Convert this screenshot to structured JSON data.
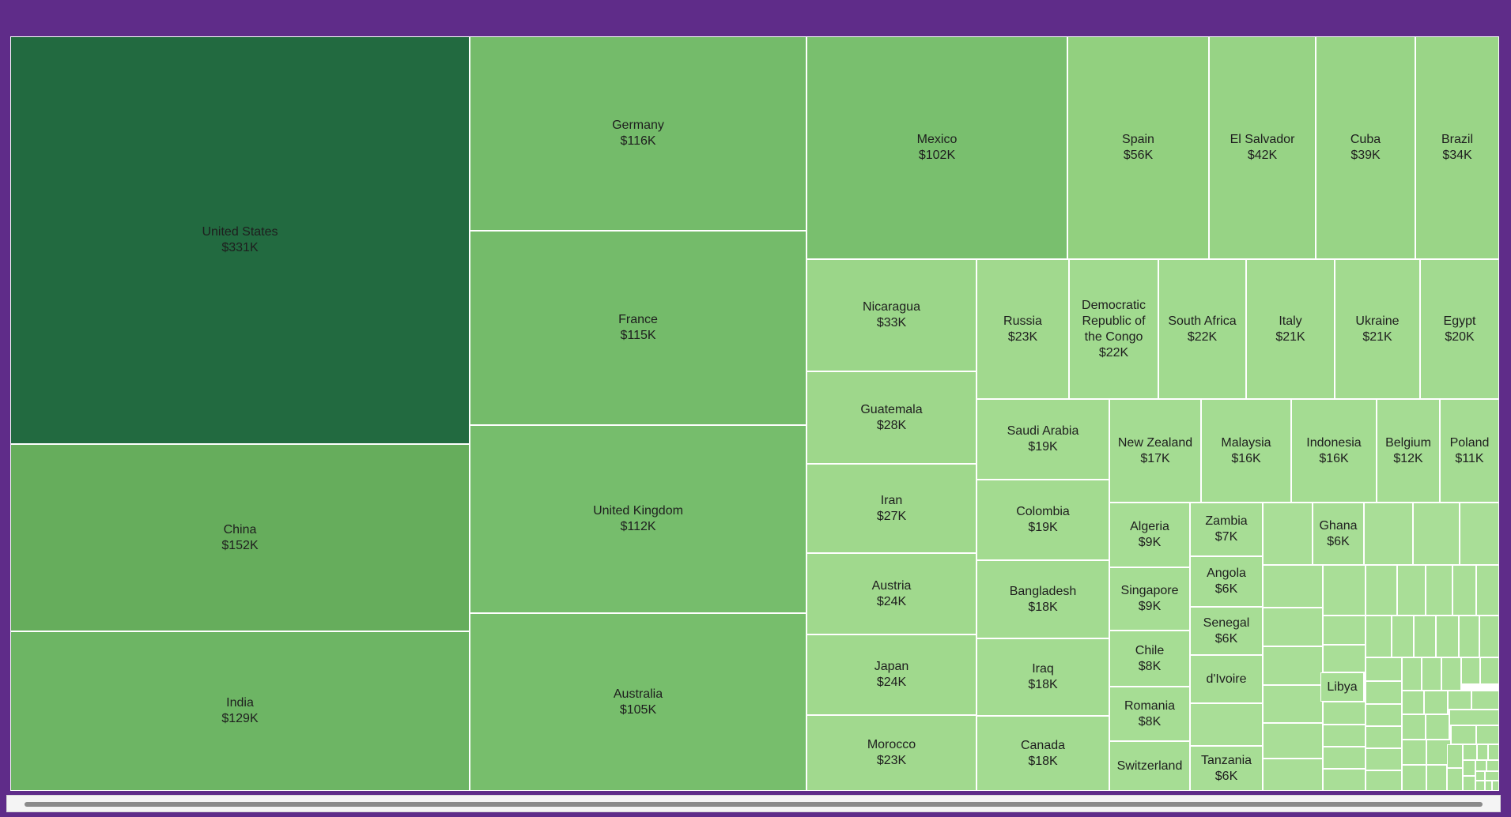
{
  "chart_data": {
    "type": "treemap",
    "title": "",
    "colors": {
      "background": "#5f2c89",
      "scale_high": "#226a40",
      "scale_mid": "#74bb6a",
      "scale_low": "#a3db93"
    },
    "series": [
      {
        "name": "United States",
        "value": 331,
        "label": "$331K",
        "color": "#226a40"
      },
      {
        "name": "China",
        "value": 152,
        "label": "$152K",
        "color": "#66ad5c"
      },
      {
        "name": "India",
        "value": 129,
        "label": "$129K",
        "color": "#6db564"
      },
      {
        "name": "Germany",
        "value": 116,
        "label": "$116K",
        "color": "#74bb6a"
      },
      {
        "name": "France",
        "value": 115,
        "label": "$115K",
        "color": "#74bb6a"
      },
      {
        "name": "United Kingdom",
        "value": 112,
        "label": "$112K",
        "color": "#76bd6c"
      },
      {
        "name": "Australia",
        "value": 105,
        "label": "$105K",
        "color": "#77be6c"
      },
      {
        "name": "Mexico",
        "value": 102,
        "label": "$102K",
        "color": "#79bf6e"
      },
      {
        "name": "Spain",
        "value": 56,
        "label": "$56K",
        "color": "#92d07f"
      },
      {
        "name": "El Salvador",
        "value": 42,
        "label": "$42K",
        "color": "#97d385"
      },
      {
        "name": "Cuba",
        "value": 39,
        "label": "$39K",
        "color": "#98d486"
      },
      {
        "name": "Brazil",
        "value": 34,
        "label": "$34K",
        "color": "#9ad587"
      },
      {
        "name": "Nicaragua",
        "value": 33,
        "label": "$33K",
        "color": "#9bd689"
      },
      {
        "name": "Guatemala",
        "value": 28,
        "label": "$28K",
        "color": "#9ed78b"
      },
      {
        "name": "Iran",
        "value": 27,
        "label": "$27K",
        "color": "#9fd88c"
      },
      {
        "name": "Austria",
        "value": 24,
        "label": "$24K",
        "color": "#a0d98d"
      },
      {
        "name": "Japan",
        "value": 24,
        "label": "$24K",
        "color": "#a0d98d"
      },
      {
        "name": "Morocco",
        "value": 23,
        "label": "$23K",
        "color": "#a1d98e"
      },
      {
        "name": "Russia",
        "value": 23,
        "label": "$23K",
        "color": "#a1d98e"
      },
      {
        "name": "Democratic Republic of the Congo",
        "value": 22,
        "label": "$22K",
        "color": "#a1da8f"
      },
      {
        "name": "South Africa",
        "value": 22,
        "label": "$22K",
        "color": "#a1da8f"
      },
      {
        "name": "Italy",
        "value": 21,
        "label": "$21K",
        "color": "#a2da8f"
      },
      {
        "name": "Ukraine",
        "value": 21,
        "label": "$21K",
        "color": "#a2da8f"
      },
      {
        "name": "Egypt",
        "value": 20,
        "label": "$20K",
        "color": "#a2da90"
      },
      {
        "name": "Saudi Arabia",
        "value": 19,
        "label": "$19K",
        "color": "#a3db90"
      },
      {
        "name": "Colombia",
        "value": 19,
        "label": "$19K",
        "color": "#a3db90"
      },
      {
        "name": "Bangladesh",
        "value": 18,
        "label": "$18K",
        "color": "#a3db91"
      },
      {
        "name": "Iraq",
        "value": 18,
        "label": "$18K",
        "color": "#a3db91"
      },
      {
        "name": "Canada",
        "value": 18,
        "label": "$18K",
        "color": "#a3db91"
      },
      {
        "name": "New Zealand",
        "value": 17,
        "label": "$17K",
        "color": "#a4dc92"
      },
      {
        "name": "Malaysia",
        "value": 16,
        "label": "$16K",
        "color": "#a4dc92"
      },
      {
        "name": "Indonesia",
        "value": 16,
        "label": "$16K",
        "color": "#a4dc92"
      },
      {
        "name": "Belgium",
        "value": 12,
        "label": "$12K",
        "color": "#a5dc93"
      },
      {
        "name": "Poland",
        "value": 11,
        "label": "$11K",
        "color": "#a5dc93"
      },
      {
        "name": "Algeria",
        "value": 9,
        "label": "$9K",
        "color": "#a6dd94"
      },
      {
        "name": "Singapore",
        "value": 9,
        "label": "$9K",
        "color": "#a6dd94"
      },
      {
        "name": "Chile",
        "value": 8,
        "label": "$8K",
        "color": "#a6dd94"
      },
      {
        "name": "Romania",
        "value": 8,
        "label": "$8K",
        "color": "#a6dd94"
      },
      {
        "name": "Switzerland",
        "value": null,
        "label": "",
        "color": "#a6dd94"
      },
      {
        "name": "Zambia",
        "value": 7,
        "label": "$7K",
        "color": "#a7dd95"
      },
      {
        "name": "Angola",
        "value": 6,
        "label": "$6K",
        "color": "#a7dd95"
      },
      {
        "name": "Senegal",
        "value": 6,
        "label": "$6K",
        "color": "#a7dd95"
      },
      {
        "name": "d'Ivoire",
        "value": null,
        "label": "",
        "color": "#a7dd95"
      },
      {
        "name": "Tanzania",
        "value": 6,
        "label": "$6K",
        "color": "#a7dd95"
      },
      {
        "name": "Ghana",
        "value": 6,
        "label": "$6K",
        "color": "#a7dd95"
      },
      {
        "name": "Libya",
        "value": null,
        "label": "",
        "color": "#a8de96"
      }
    ]
  }
}
